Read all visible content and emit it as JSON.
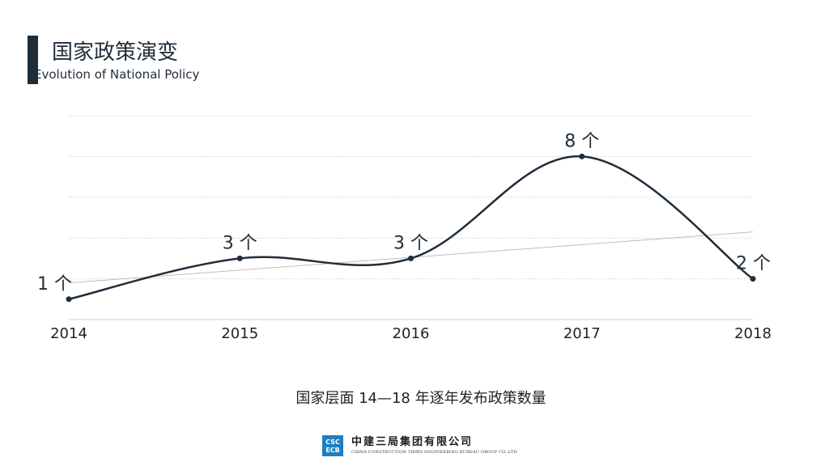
{
  "header": {
    "title_cn": "国家政策演变",
    "title_en": "Evolution of National Policy"
  },
  "chart_data": {
    "type": "line",
    "categories": [
      "2014",
      "2015",
      "2016",
      "2017",
      "2018"
    ],
    "series": [
      {
        "values": [
          1,
          3,
          3,
          8,
          2
        ],
        "color": "#1f2d3a"
      }
    ],
    "data_labels": [
      "1 个",
      "3 个",
      "3 个",
      "8 个",
      "2 个"
    ],
    "trendline": {
      "from": 1.8,
      "to": 4.3,
      "color": "#bdbdbd"
    },
    "ylim": [
      0,
      10
    ],
    "grid": true,
    "title": "",
    "xlabel": "",
    "ylabel": ""
  },
  "caption": "国家层面 14—18 年逐年发布政策数量",
  "logo": {
    "name_cn": "中建三局集团有限公司",
    "name_en": "CHINA CONSTRUCTION THIRD ENGINEERING BUREAU GROUP CO.,LTD.",
    "color": "#1c7fc3"
  }
}
